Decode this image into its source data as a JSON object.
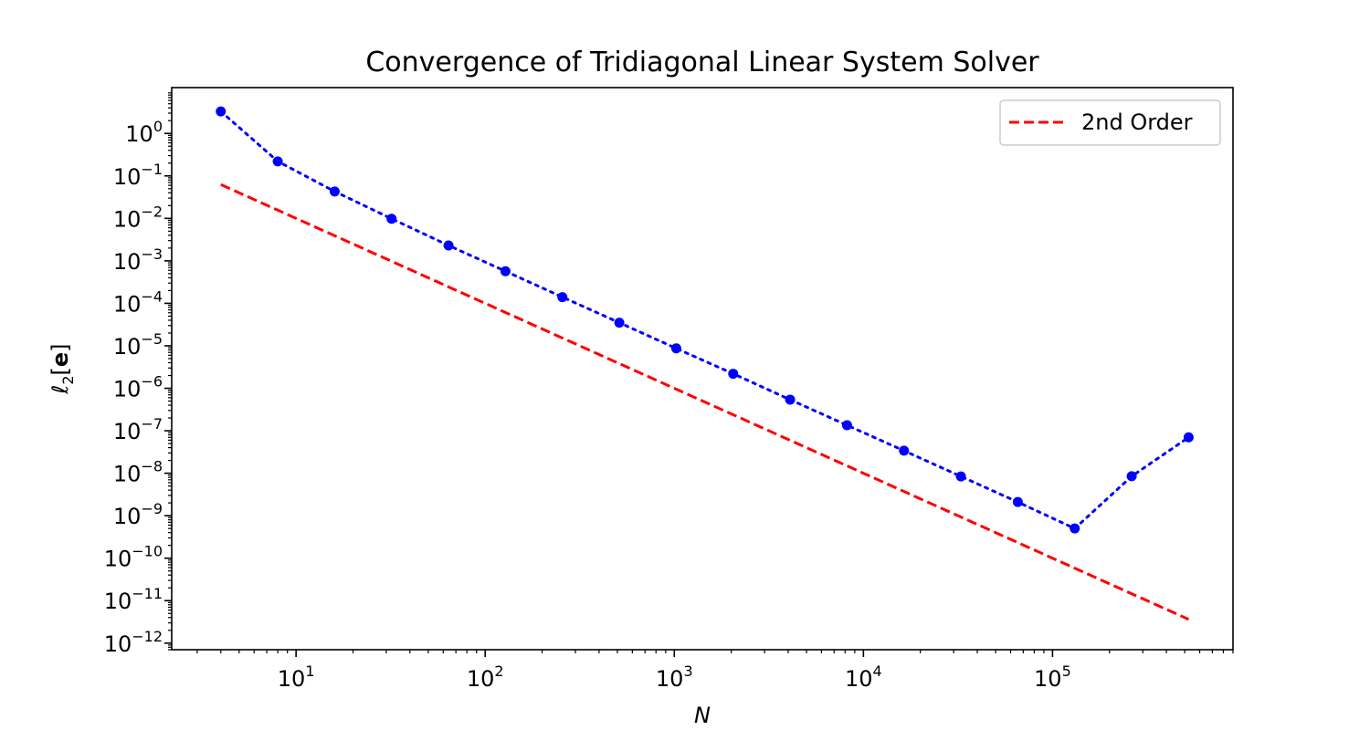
{
  "chart_data": {
    "type": "line",
    "title": "Convergence of Tridiagonal Linear System Solver",
    "xlabel": "N",
    "ylabel": "ℓ2[e]",
    "ylabel_parts": {
      "base": "ℓ",
      "subscript": "2",
      "open": "[",
      "bold": "e",
      "close": "]"
    },
    "xscale": "log",
    "yscale": "log",
    "xlim": [
      2.2,
      900000
    ],
    "ylim": [
      7e-13,
      12
    ],
    "grid": false,
    "legend_position": "top-right",
    "x_tick_labels": [
      {
        "base": "10",
        "exp": "1",
        "value": 10
      },
      {
        "base": "10",
        "exp": "2",
        "value": 100
      },
      {
        "base": "10",
        "exp": "3",
        "value": 1000
      },
      {
        "base": "10",
        "exp": "4",
        "value": 10000
      },
      {
        "base": "10",
        "exp": "5",
        "value": 100000
      }
    ],
    "y_tick_labels": [
      {
        "base": "10",
        "exp": "0",
        "value": 1
      },
      {
        "base": "10",
        "exp": "−1",
        "value": 0.1
      },
      {
        "base": "10",
        "exp": "−2",
        "value": 0.01
      },
      {
        "base": "10",
        "exp": "−3",
        "value": 0.001
      },
      {
        "base": "10",
        "exp": "−4",
        "value": 0.0001
      },
      {
        "base": "10",
        "exp": "−5",
        "value": 1e-05
      },
      {
        "base": "10",
        "exp": "−6",
        "value": 1e-06
      },
      {
        "base": "10",
        "exp": "−7",
        "value": 1e-07
      },
      {
        "base": "10",
        "exp": "−8",
        "value": 1e-08
      },
      {
        "base": "10",
        "exp": "−9",
        "value": 1e-09
      },
      {
        "base": "10",
        "exp": "−10",
        "value": 1e-10
      },
      {
        "base": "10",
        "exp": "−11",
        "value": 1e-11
      },
      {
        "base": "10",
        "exp": "−12",
        "value": 1e-12
      }
    ],
    "series": [
      {
        "style": "dotted-with-markers",
        "color": "#0000ff",
        "x": [
          4,
          8,
          16,
          32,
          64,
          128,
          256,
          512,
          1024,
          2048,
          4096,
          8192,
          16384,
          32768,
          65536,
          131072,
          262144,
          524288
        ],
        "y": [
          3.3,
          0.22,
          0.043,
          0.0098,
          0.0023,
          0.00057,
          0.00014,
          3.5e-05,
          8.7e-06,
          2.2e-06,
          5.4e-07,
          1.35e-07,
          3.4e-08,
          8.4e-09,
          2.1e-09,
          5e-10,
          8.5e-09,
          7e-08
        ]
      },
      {
        "name": "2nd Order",
        "style": "dashed",
        "color": "#ff0000",
        "x": [
          4,
          524288
        ],
        "y": [
          0.0625,
          3.64e-12
        ]
      }
    ]
  }
}
